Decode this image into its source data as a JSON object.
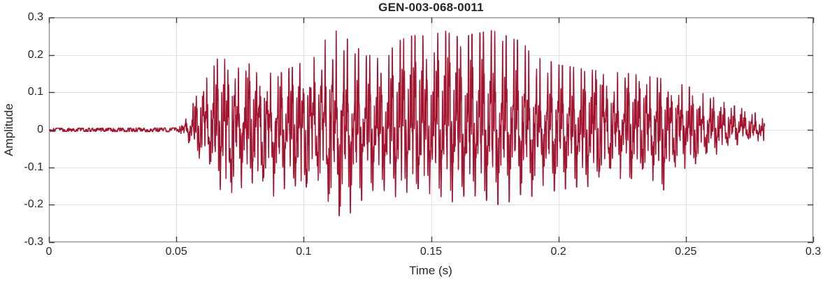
{
  "chart_data": {
    "type": "line",
    "title": "GEN-003-068-0011",
    "xlabel": "Time (s)",
    "ylabel": "Amplitude",
    "xlim": [
      0,
      0.3
    ],
    "ylim": [
      -0.3,
      0.3
    ],
    "xticks": [
      0,
      0.05,
      0.1,
      0.15,
      0.2,
      0.25,
      0.3
    ],
    "xtick_labels": [
      "0",
      "0.05",
      "0.1",
      "0.15",
      "0.2",
      "0.25",
      "0.3"
    ],
    "yticks": [
      0.3,
      0.2,
      0.1,
      0,
      -0.1,
      -0.2,
      -0.3
    ],
    "ytick_labels": [
      "0.3",
      "0.2",
      "0.1",
      "0",
      "-0.1",
      "-0.2",
      "-0.3"
    ],
    "grid": true,
    "legend": null,
    "colors": {
      "line": "#A2142F",
      "grid": "#e0e0e0",
      "box": "#919191",
      "tick": "#3d3d3d",
      "text": "#262626",
      "background": "#ffffff"
    },
    "signal": {
      "kind": "speech-like waveform, single series",
      "t_start": 0.0,
      "t_end": 0.281,
      "voiced_onset_s": 0.054,
      "noise_floor": 0.011,
      "f0_hz": 235,
      "sample_rate_hz": 16000,
      "seed": 68011,
      "peak_amplitude": 0.265,
      "min_amplitude": -0.225,
      "envelope_t_up_down": [
        [
          0.0,
          0.004,
          0.004
        ],
        [
          0.05,
          0.005,
          0.005
        ],
        [
          0.054,
          0.03,
          0.03
        ],
        [
          0.058,
          0.09,
          0.07
        ],
        [
          0.062,
          0.15,
          0.1
        ],
        [
          0.066,
          0.185,
          0.155
        ],
        [
          0.07,
          0.185,
          0.16
        ],
        [
          0.074,
          0.165,
          0.17
        ],
        [
          0.078,
          0.175,
          0.15
        ],
        [
          0.082,
          0.16,
          0.175
        ],
        [
          0.086,
          0.15,
          0.18
        ],
        [
          0.09,
          0.145,
          0.175
        ],
        [
          0.094,
          0.16,
          0.14
        ],
        [
          0.098,
          0.17,
          0.15
        ],
        [
          0.102,
          0.2,
          0.15
        ],
        [
          0.106,
          0.22,
          0.16
        ],
        [
          0.11,
          0.245,
          0.19
        ],
        [
          0.114,
          0.265,
          0.225
        ],
        [
          0.118,
          0.23,
          0.22
        ],
        [
          0.122,
          0.21,
          0.19
        ],
        [
          0.126,
          0.195,
          0.16
        ],
        [
          0.13,
          0.185,
          0.155
        ],
        [
          0.134,
          0.21,
          0.165
        ],
        [
          0.138,
          0.235,
          0.185
        ],
        [
          0.142,
          0.245,
          0.165
        ],
        [
          0.146,
          0.25,
          0.15
        ],
        [
          0.15,
          0.23,
          0.17
        ],
        [
          0.154,
          0.265,
          0.175
        ],
        [
          0.158,
          0.25,
          0.19
        ],
        [
          0.162,
          0.24,
          0.175
        ],
        [
          0.166,
          0.25,
          0.17
        ],
        [
          0.17,
          0.255,
          0.18
        ],
        [
          0.174,
          0.26,
          0.19
        ],
        [
          0.178,
          0.25,
          0.2
        ],
        [
          0.182,
          0.24,
          0.185
        ],
        [
          0.186,
          0.23,
          0.165
        ],
        [
          0.19,
          0.205,
          0.175
        ],
        [
          0.195,
          0.185,
          0.16
        ],
        [
          0.2,
          0.17,
          0.16
        ],
        [
          0.205,
          0.165,
          0.15
        ],
        [
          0.21,
          0.16,
          0.15
        ],
        [
          0.215,
          0.155,
          0.145
        ],
        [
          0.22,
          0.15,
          0.14
        ],
        [
          0.225,
          0.15,
          0.135
        ],
        [
          0.23,
          0.145,
          0.125
        ],
        [
          0.235,
          0.14,
          0.14
        ],
        [
          0.24,
          0.135,
          0.17
        ],
        [
          0.245,
          0.125,
          0.12
        ],
        [
          0.25,
          0.115,
          0.1
        ],
        [
          0.255,
          0.105,
          0.085
        ],
        [
          0.26,
          0.09,
          0.07
        ],
        [
          0.265,
          0.075,
          0.055
        ],
        [
          0.27,
          0.06,
          0.04
        ],
        [
          0.275,
          0.05,
          0.025
        ],
        [
          0.279,
          0.04,
          0.03
        ],
        [
          0.281,
          0.02,
          0.045
        ]
      ]
    }
  }
}
